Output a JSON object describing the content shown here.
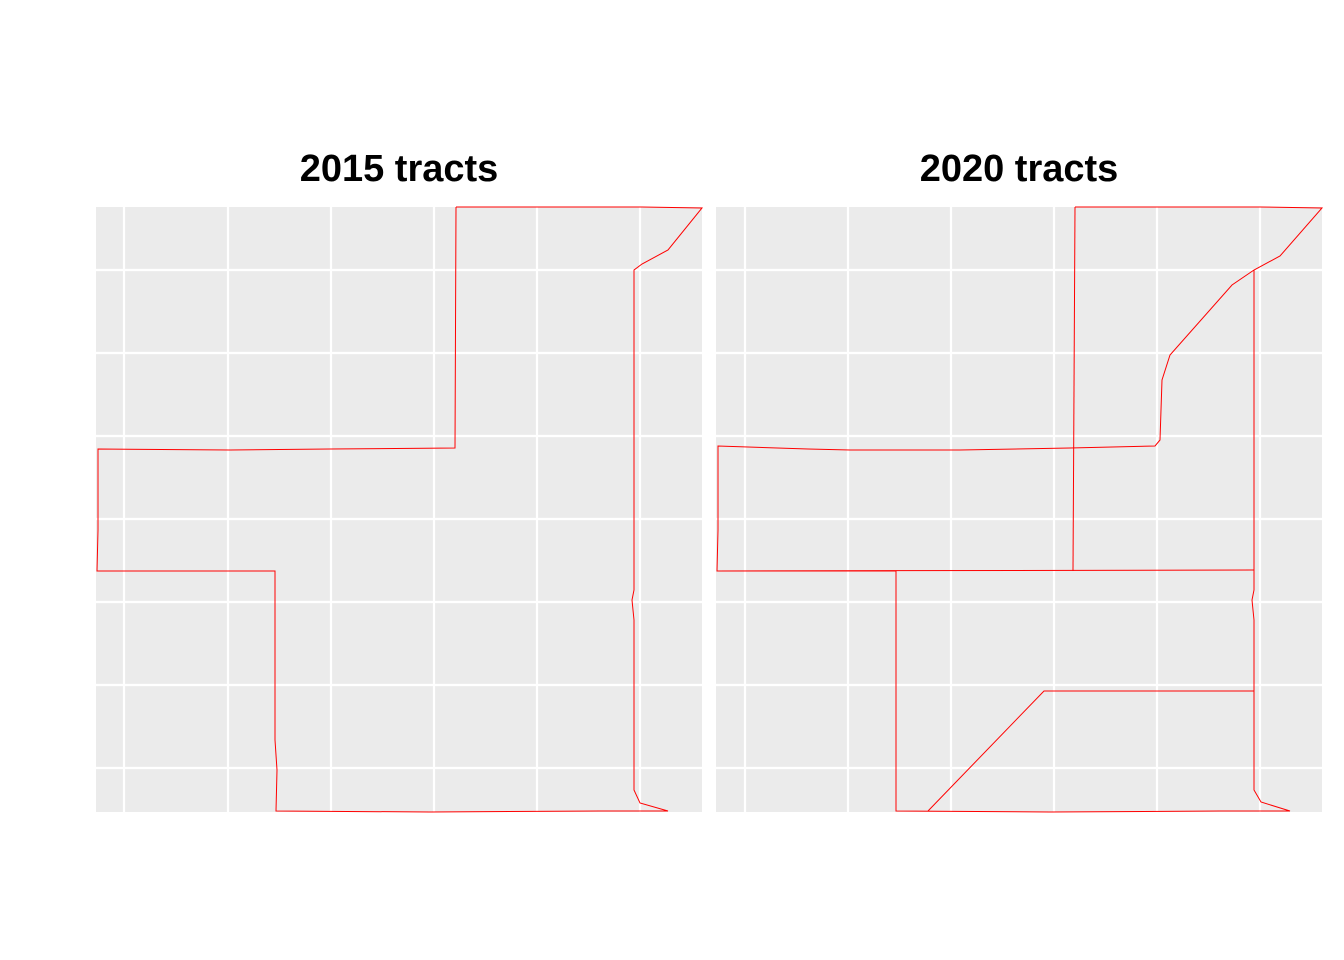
{
  "panels": [
    {
      "title": "2015 tracts"
    },
    {
      "title": "2020 tracts"
    }
  ],
  "colors": {
    "panel_background": "#EBEBEB",
    "grid_line": "#FFFFFF",
    "tract_border": "#FF0000",
    "page_background": "#FFFFFF"
  }
}
